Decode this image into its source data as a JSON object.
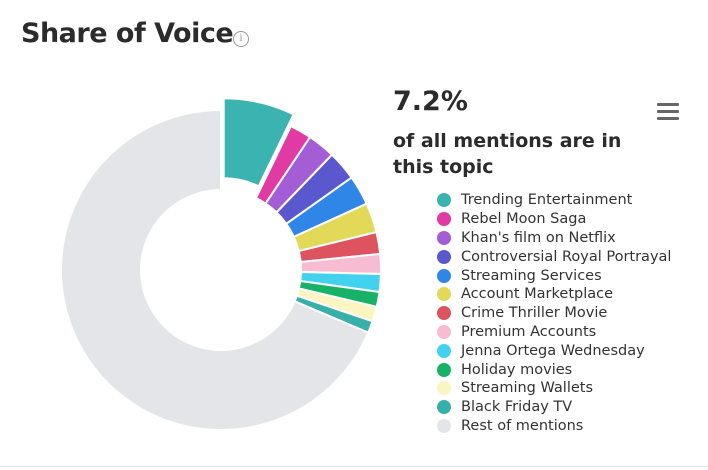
{
  "header": {
    "title": "Share of Voice",
    "info_icon": "info-icon"
  },
  "highlight": {
    "value": "7.2%",
    "text": "of all mentions are in this topic"
  },
  "menu_icon": "hamburger-menu-icon",
  "chart_data": {
    "type": "pie",
    "donut": true,
    "legend_placement": "right",
    "slices": [
      {
        "name": "Trending Entertainment",
        "value": 7.2,
        "color": "#3bb3b1",
        "exploded": true
      },
      {
        "name": "Rebel Moon Saga",
        "value": 2.2,
        "color": "#e23aa5"
      },
      {
        "name": "Khan's film on Netflix",
        "value": 2.8,
        "color": "#a35ed6"
      },
      {
        "name": "Controversial Royal Portrayal",
        "value": 3.0,
        "color": "#5b57cf"
      },
      {
        "name": "Streaming Services",
        "value": 3.0,
        "color": "#2f86e6"
      },
      {
        "name": "Account Marketplace",
        "value": 3.0,
        "color": "#e1d957"
      },
      {
        "name": "Crime Thriller Movie",
        "value": 2.2,
        "color": "#dd5460"
      },
      {
        "name": "Premium Accounts",
        "value": 2.0,
        "color": "#f7bcd2"
      },
      {
        "name": "Jenna Ortega Wednesday",
        "value": 1.8,
        "color": "#43d2ee"
      },
      {
        "name": "Holiday movies",
        "value": 1.5,
        "color": "#17b266"
      },
      {
        "name": "Streaming Wallets",
        "value": 1.5,
        "color": "#fbf5c1"
      },
      {
        "name": "Black Friday TV",
        "value": 1.2,
        "color": "#37b0aa"
      },
      {
        "name": "Rest of mentions",
        "value": 68.6,
        "color": "#e3e5e8"
      }
    ]
  }
}
